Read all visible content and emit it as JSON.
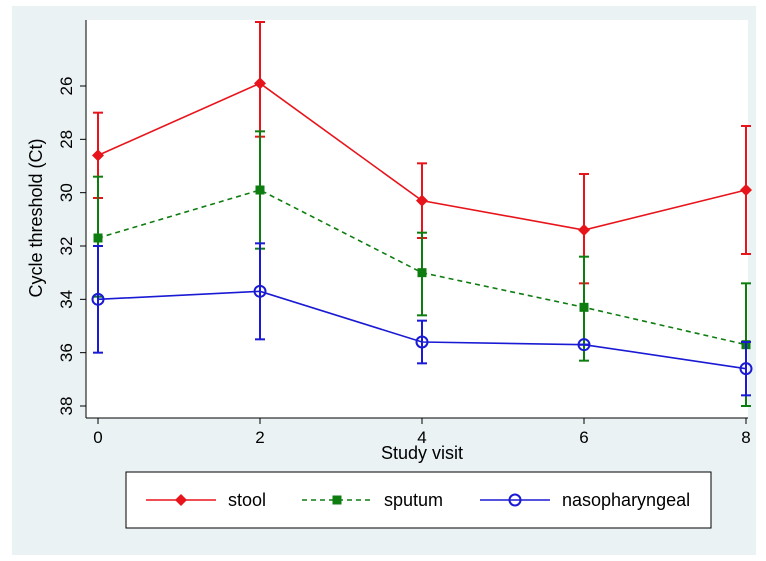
{
  "chart_data": {
    "type": "line",
    "xlabel": "Study visit",
    "ylabel": "Cycle threshold (Ct)",
    "x": [
      0,
      2,
      4,
      6,
      8
    ],
    "xticks": [
      "0",
      "2",
      "4",
      "6",
      "8"
    ],
    "yticks": [
      "26",
      "28",
      "30",
      "32",
      "34",
      "36",
      "38"
    ],
    "ylim": [
      38.4,
      24
    ],
    "y_reversed": true,
    "grid": false,
    "legend_position": "bottom",
    "series": [
      {
        "name": "stool",
        "color": "#e8141b",
        "marker": "diamond-filled",
        "dash": "solid",
        "values": [
          28.6,
          25.9,
          30.3,
          31.4,
          29.9
        ],
        "err_low": [
          27.0,
          23.6,
          28.9,
          29.3,
          27.5
        ],
        "err_high": [
          30.2,
          27.9,
          31.7,
          33.4,
          32.3
        ]
      },
      {
        "name": "sputum",
        "color": "#0e7d10",
        "marker": "square-filled",
        "dash": "dashed",
        "values": [
          31.7,
          29.9,
          33.0,
          34.3,
          35.7
        ],
        "err_low": [
          29.4,
          27.7,
          31.5,
          32.4,
          33.4
        ],
        "err_high": [
          33.9,
          32.1,
          34.6,
          36.3,
          38.0
        ]
      },
      {
        "name": "nasopharyngeal",
        "color": "#1a1ad4",
        "marker": "circle-open",
        "dash": "solid",
        "values": [
          34.0,
          33.7,
          35.6,
          35.7,
          36.6
        ],
        "err_low": [
          32.0,
          31.9,
          34.8,
          35.7,
          35.6
        ],
        "err_high": [
          36.0,
          35.5,
          36.4,
          35.7,
          37.6
        ]
      }
    ]
  }
}
